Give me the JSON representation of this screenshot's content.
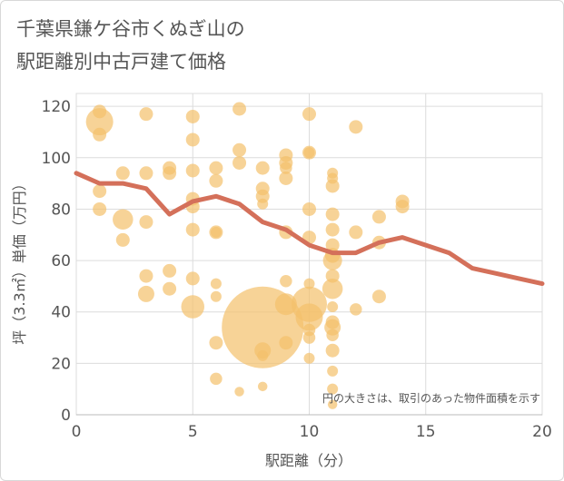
{
  "title_lines": [
    "千葉県鎌ケ谷市くぬぎ山の",
    "駅距離別中古戸建て価格"
  ],
  "chart_data": {
    "type": "scatter",
    "xlabel": "駅距離（分）",
    "ylabel": "坪（3.3㎡）単価（万円）",
    "xlim": [
      0,
      20
    ],
    "ylim": [
      0,
      125
    ],
    "xticks": [
      0,
      5,
      10,
      15,
      20
    ],
    "yticks": [
      0,
      20,
      40,
      60,
      80,
      100,
      120
    ],
    "grid": true,
    "annotation": "円の大きさは、取引のあった物件面積を示す",
    "colors": {
      "bubble": "#f3c06b",
      "line": "#d4705a",
      "grid": "#dcdcdc",
      "text": "#555555"
    },
    "bubbles": [
      {
        "x": 1,
        "y": 118,
        "s": 1
      },
      {
        "x": 1,
        "y": 114,
        "s": 2
      },
      {
        "x": 1,
        "y": 109,
        "s": 1
      },
      {
        "x": 1,
        "y": 87,
        "s": 1
      },
      {
        "x": 1,
        "y": 80,
        "s": 1
      },
      {
        "x": 2,
        "y": 94,
        "s": 1
      },
      {
        "x": 2,
        "y": 76,
        "s": 1.5
      },
      {
        "x": 2,
        "y": 68,
        "s": 1
      },
      {
        "x": 3,
        "y": 117,
        "s": 1
      },
      {
        "x": 3,
        "y": 94,
        "s": 1
      },
      {
        "x": 3,
        "y": 75,
        "s": 1
      },
      {
        "x": 3,
        "y": 54,
        "s": 1
      },
      {
        "x": 3,
        "y": 47,
        "s": 1.2
      },
      {
        "x": 4,
        "y": 96,
        "s": 1
      },
      {
        "x": 4,
        "y": 94,
        "s": 1
      },
      {
        "x": 4,
        "y": 56,
        "s": 1
      },
      {
        "x": 4,
        "y": 49,
        "s": 1
      },
      {
        "x": 5,
        "y": 116,
        "s": 1
      },
      {
        "x": 5,
        "y": 107,
        "s": 1
      },
      {
        "x": 5,
        "y": 95,
        "s": 1
      },
      {
        "x": 5,
        "y": 84,
        "s": 1
      },
      {
        "x": 5,
        "y": 81,
        "s": 1
      },
      {
        "x": 5,
        "y": 72,
        "s": 1
      },
      {
        "x": 5,
        "y": 53,
        "s": 1
      },
      {
        "x": 5,
        "y": 42,
        "s": 1.7
      },
      {
        "x": 6,
        "y": 96,
        "s": 1
      },
      {
        "x": 6,
        "y": 91,
        "s": 1
      },
      {
        "x": 6,
        "y": 71,
        "s": 1
      },
      {
        "x": 6,
        "y": 71,
        "s": 0.8
      },
      {
        "x": 6,
        "y": 51,
        "s": 0.8
      },
      {
        "x": 6,
        "y": 46,
        "s": 0.8
      },
      {
        "x": 6,
        "y": 28,
        "s": 1
      },
      {
        "x": 6,
        "y": 14,
        "s": 0.9
      },
      {
        "x": 7,
        "y": 119,
        "s": 1
      },
      {
        "x": 7,
        "y": 103,
        "s": 1
      },
      {
        "x": 7,
        "y": 98,
        "s": 1
      },
      {
        "x": 7,
        "y": 9,
        "s": 0.7
      },
      {
        "x": 8,
        "y": 96,
        "s": 1
      },
      {
        "x": 8,
        "y": 88,
        "s": 1
      },
      {
        "x": 8,
        "y": 85,
        "s": 1
      },
      {
        "x": 8,
        "y": 82,
        "s": 0.8
      },
      {
        "x": 8,
        "y": 34,
        "s": 6
      },
      {
        "x": 8,
        "y": 25,
        "s": 1.2
      },
      {
        "x": 8,
        "y": 23,
        "s": 0.8
      },
      {
        "x": 8,
        "y": 11,
        "s": 0.7
      },
      {
        "x": 9,
        "y": 101,
        "s": 1
      },
      {
        "x": 9,
        "y": 98,
        "s": 1
      },
      {
        "x": 9,
        "y": 96,
        "s": 0.9
      },
      {
        "x": 9,
        "y": 92,
        "s": 1
      },
      {
        "x": 9,
        "y": 71,
        "s": 1
      },
      {
        "x": 9,
        "y": 52,
        "s": 0.9
      },
      {
        "x": 9,
        "y": 43,
        "s": 1.6
      },
      {
        "x": 9,
        "y": 28,
        "s": 1
      },
      {
        "x": 10,
        "y": 117,
        "s": 1
      },
      {
        "x": 10,
        "y": 102,
        "s": 1
      },
      {
        "x": 10,
        "y": 102,
        "s": 0.8
      },
      {
        "x": 10,
        "y": 80,
        "s": 1
      },
      {
        "x": 10,
        "y": 69,
        "s": 1
      },
      {
        "x": 10,
        "y": 51,
        "s": 0.8
      },
      {
        "x": 10,
        "y": 43,
        "s": 2.6
      },
      {
        "x": 10,
        "y": 38,
        "s": 2
      },
      {
        "x": 10,
        "y": 33,
        "s": 0.9
      },
      {
        "x": 10,
        "y": 30,
        "s": 0.9
      },
      {
        "x": 10,
        "y": 22,
        "s": 0.8
      },
      {
        "x": 11,
        "y": 94,
        "s": 0.8
      },
      {
        "x": 11,
        "y": 92,
        "s": 0.8
      },
      {
        "x": 11,
        "y": 89,
        "s": 1
      },
      {
        "x": 11,
        "y": 78,
        "s": 1
      },
      {
        "x": 11,
        "y": 72,
        "s": 1
      },
      {
        "x": 11,
        "y": 66,
        "s": 1
      },
      {
        "x": 11,
        "y": 62,
        "s": 1.1
      },
      {
        "x": 11,
        "y": 60,
        "s": 1.4
      },
      {
        "x": 11,
        "y": 54,
        "s": 1
      },
      {
        "x": 11,
        "y": 49,
        "s": 1.5
      },
      {
        "x": 11,
        "y": 42,
        "s": 0.8
      },
      {
        "x": 11,
        "y": 36,
        "s": 1
      },
      {
        "x": 11,
        "y": 34,
        "s": 1.2
      },
      {
        "x": 11,
        "y": 31,
        "s": 0.9
      },
      {
        "x": 11,
        "y": 25,
        "s": 1
      },
      {
        "x": 11,
        "y": 17,
        "s": 0.8
      },
      {
        "x": 11,
        "y": 10,
        "s": 0.8
      },
      {
        "x": 11,
        "y": 4,
        "s": 0.7
      },
      {
        "x": 12,
        "y": 112,
        "s": 1
      },
      {
        "x": 12,
        "y": 71,
        "s": 1
      },
      {
        "x": 12,
        "y": 41,
        "s": 0.9
      },
      {
        "x": 13,
        "y": 77,
        "s": 1
      },
      {
        "x": 13,
        "y": 67,
        "s": 1
      },
      {
        "x": 13,
        "y": 46,
        "s": 1
      },
      {
        "x": 14,
        "y": 83,
        "s": 1
      },
      {
        "x": 14,
        "y": 81,
        "s": 1
      }
    ],
    "trend": {
      "x": [
        0,
        1,
        2,
        3,
        4,
        5,
        6,
        7,
        8,
        9,
        10,
        11,
        12,
        13,
        14,
        15,
        16,
        17,
        18,
        19,
        20
      ],
      "y": [
        94,
        90,
        90,
        88,
        78,
        83,
        85,
        82,
        75,
        72,
        66,
        63,
        63,
        67,
        69,
        66,
        63,
        57,
        55,
        53,
        51
      ]
    }
  }
}
